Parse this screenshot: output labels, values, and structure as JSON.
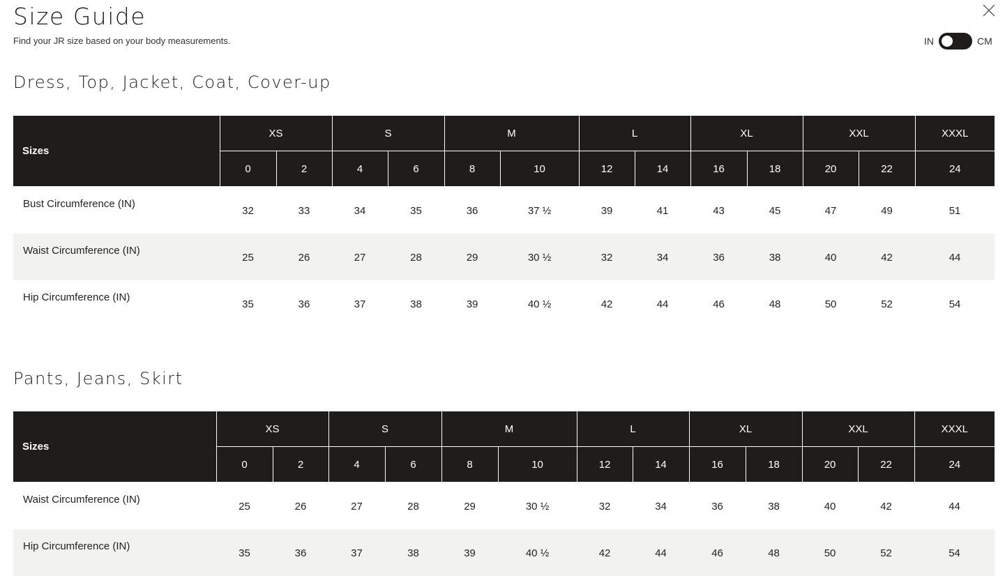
{
  "header": {
    "title": "Size Guide",
    "subtitle": "Find your JR size based on your body measurements.",
    "close_icon": "close-x-icon",
    "unit_toggle": {
      "left_label": "IN",
      "right_label": "CM",
      "selected": "IN"
    }
  },
  "colors": {
    "header_bg": "#1f1d1c",
    "stripe_bg": "#f2f2f0"
  },
  "tables": [
    {
      "title": "Dress, Top, Jacket, Coat, Cover-up",
      "sizes_label": "Sizes",
      "groups": [
        {
          "label": "XS",
          "span": 2
        },
        {
          "label": "S",
          "span": 2
        },
        {
          "label": "M",
          "span": 2
        },
        {
          "label": "L",
          "span": 2
        },
        {
          "label": "XL",
          "span": 2
        },
        {
          "label": "XXL",
          "span": 2
        },
        {
          "label": "XXXL",
          "span": 1
        }
      ],
      "sizes": [
        "0",
        "2",
        "4",
        "6",
        "8",
        "10",
        "12",
        "14",
        "16",
        "18",
        "20",
        "22",
        "24"
      ],
      "rows": [
        {
          "label": "Bust Circumference (IN)",
          "values": [
            "32",
            "33",
            "34",
            "35",
            "36",
            "37 ½",
            "39",
            "41",
            "43",
            "45",
            "47",
            "49",
            "51"
          ]
        },
        {
          "label": "Waist Circumference (IN)",
          "values": [
            "25",
            "26",
            "27",
            "28",
            "29",
            "30 ½",
            "32",
            "34",
            "36",
            "38",
            "40",
            "42",
            "44"
          ]
        },
        {
          "label": "Hip Circumference (IN)",
          "values": [
            "35",
            "36",
            "37",
            "38",
            "39",
            "40 ½",
            "42",
            "44",
            "46",
            "48",
            "50",
            "52",
            "54"
          ]
        }
      ]
    },
    {
      "title": "Pants, Jeans, Skirt",
      "sizes_label": "Sizes",
      "groups": [
        {
          "label": "XS",
          "span": 2
        },
        {
          "label": "S",
          "span": 2
        },
        {
          "label": "M",
          "span": 2
        },
        {
          "label": "L",
          "span": 2
        },
        {
          "label": "XL",
          "span": 2
        },
        {
          "label": "XXL",
          "span": 2
        },
        {
          "label": "XXXL",
          "span": 1
        }
      ],
      "sizes": [
        "0",
        "2",
        "4",
        "6",
        "8",
        "10",
        "12",
        "14",
        "16",
        "18",
        "20",
        "22",
        "24"
      ],
      "rows": [
        {
          "label": "Waist Circumference (IN)",
          "values": [
            "25",
            "26",
            "27",
            "28",
            "29",
            "30 ½",
            "32",
            "34",
            "36",
            "38",
            "40",
            "42",
            "44"
          ]
        },
        {
          "label": "Hip Circumference (IN)",
          "values": [
            "35",
            "36",
            "37",
            "38",
            "39",
            "40 ½",
            "42",
            "44",
            "46",
            "48",
            "50",
            "52",
            "54"
          ]
        }
      ]
    }
  ]
}
